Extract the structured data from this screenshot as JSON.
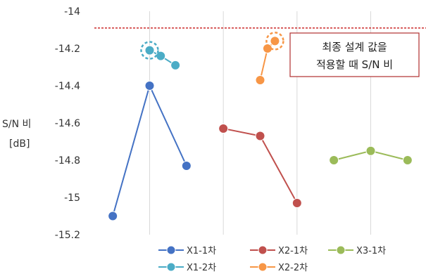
{
  "chart_data": {
    "type": "line",
    "ylabel_lines": [
      "S/N 비",
      "[dB]"
    ],
    "ylim": [
      -15.2,
      -14.0
    ],
    "yticks": [
      -14,
      -14.2,
      -14.4,
      -14.6,
      -14.8,
      -15,
      -15.2
    ],
    "ytick_labels": [
      "-14",
      "-14.2",
      "-14.4",
      "-14.6",
      "-14.8",
      "-15",
      "-15.2"
    ],
    "grid": "vertical",
    "reference_line": {
      "value": -14.09,
      "color": "#c00000",
      "style": "dashed"
    },
    "annotation_lines": [
      "최종 설계 값을",
      "적용할 때 S/N 비"
    ],
    "annotation_border_color": "#b03030",
    "legend_position": "bottom",
    "series": [
      {
        "name": "X1-1차",
        "color": "#4472c4",
        "points": [
          [
            -14.0,
            -15.1
          ],
          [
            -13.0,
            -14.4
          ],
          [
            -12.0,
            -14.83
          ]
        ]
      },
      {
        "name": "X2-1차",
        "color": "#c0504d",
        "points": [
          [
            -11.0,
            -14.63
          ],
          [
            -10.0,
            -14.67
          ],
          [
            -9.0,
            -15.03
          ]
        ]
      },
      {
        "name": "X3-1차",
        "color": "#9bbb59",
        "points": [
          [
            -8.0,
            -14.8
          ],
          [
            -7.0,
            -14.75
          ],
          [
            -6.0,
            -14.8
          ]
        ]
      },
      {
        "name": "X1-2차",
        "color": "#4bacc6",
        "points": [
          [
            -13.0,
            -14.21
          ],
          [
            -12.7,
            -14.24
          ],
          [
            -12.3,
            -14.29
          ]
        ]
      },
      {
        "name": "X2-2차",
        "color": "#f79646",
        "points": [
          [
            -10.0,
            -14.37
          ],
          [
            -9.8,
            -14.2
          ],
          [
            -9.6,
            -14.16
          ]
        ]
      }
    ],
    "highlighted": [
      {
        "series": "X1-2차",
        "x": -13.0,
        "y": -14.21
      },
      {
        "series": "X2-2차",
        "x": -9.6,
        "y": -14.16
      }
    ],
    "xlim": [
      -14.5,
      -5.5
    ],
    "x_gridlines": [
      -13.0,
      -11.0,
      -9.0,
      -7.0
    ]
  }
}
